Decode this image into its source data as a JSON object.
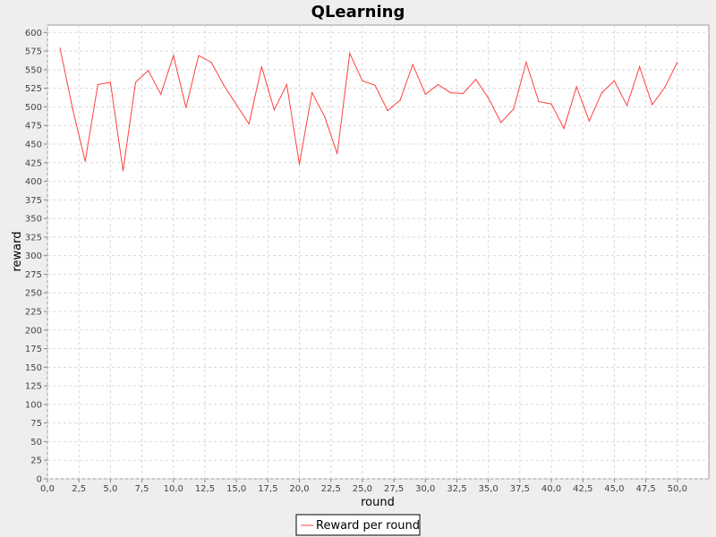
{
  "chart_data": {
    "type": "line",
    "title": "QLearning",
    "xlabel": "round",
    "ylabel": "reward",
    "xlim": [
      0,
      52.5
    ],
    "ylim": [
      0,
      610
    ],
    "x_ticks": [
      "0,0",
      "2,5",
      "5,0",
      "7,5",
      "10,0",
      "12,5",
      "15,0",
      "17,5",
      "20,0",
      "22,5",
      "25,0",
      "27,5",
      "30,0",
      "32,5",
      "35,0",
      "37,5",
      "40,0",
      "42,5",
      "45,0",
      "47,5",
      "50,0"
    ],
    "y_ticks": [
      "0",
      "25",
      "50",
      "75",
      "100",
      "125",
      "150",
      "175",
      "200",
      "225",
      "250",
      "275",
      "300",
      "325",
      "350",
      "375",
      "400",
      "425",
      "450",
      "475",
      "500",
      "525",
      "550",
      "575",
      "600"
    ],
    "grid": true,
    "legend_position": "bottom-center",
    "series": [
      {
        "name": "Reward per round",
        "color": "#ff4040",
        "x": [
          1,
          2,
          3,
          4,
          5,
          6,
          7,
          8,
          9,
          10,
          11,
          12,
          13,
          14,
          15,
          16,
          17,
          18,
          19,
          20,
          21,
          22,
          23,
          24,
          25,
          26,
          27,
          28,
          29,
          30,
          31,
          32,
          33,
          34,
          35,
          36,
          37,
          38,
          39,
          40,
          41,
          42,
          43,
          44,
          45,
          46,
          47,
          48,
          49,
          50
        ],
        "y": [
          579,
          497,
          427,
          530,
          533,
          414,
          533,
          549,
          517,
          569,
          499,
          569,
          560,
          529,
          503,
          477,
          554,
          496,
          530,
          423,
          519,
          487,
          437,
          572,
          535,
          529,
          495,
          509,
          557,
          517,
          530,
          519,
          518,
          537,
          512,
          479,
          497,
          560,
          507,
          504,
          471,
          527,
          481,
          519,
          535,
          502,
          554,
          503,
          526,
          560
        ]
      }
    ]
  }
}
